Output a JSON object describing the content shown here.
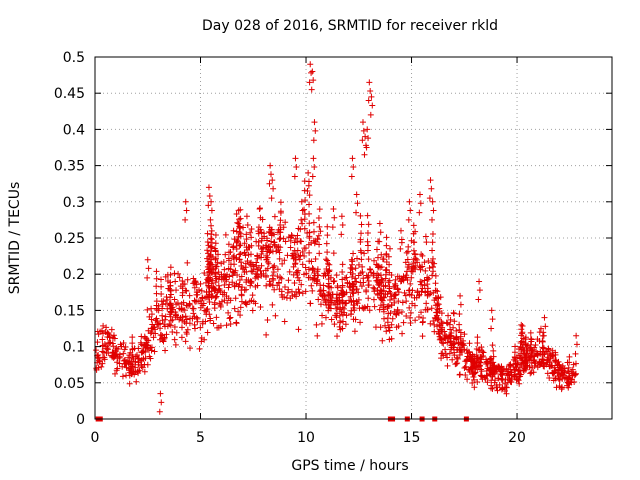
{
  "chart_data": {
    "type": "scatter",
    "title": "Day 028 of 2016, SRMTID for receiver rkld",
    "xlabel": "GPS time / hours",
    "ylabel": "SRMTID / TECUs",
    "xlim": [
      0,
      24.5
    ],
    "ylim": [
      0,
      0.5
    ],
    "xticks": [
      0,
      5,
      10,
      15,
      20
    ],
    "xtick_labels": [
      "0",
      "5",
      "10",
      "15",
      "20"
    ],
    "yticks": [
      0,
      0.05,
      0.1,
      0.15,
      0.2,
      0.25,
      0.3,
      0.35,
      0.4,
      0.45,
      0.5
    ],
    "ytick_labels": [
      "0",
      "0.05",
      "0.1",
      "0.15",
      "0.2",
      "0.25",
      "0.3",
      "0.35",
      "0.4",
      "0.45",
      "0.5"
    ],
    "grid": true,
    "marker": "plus",
    "color": "#e00000",
    "trend": [
      [
        0.0,
        0.09
      ],
      [
        0.5,
        0.1
      ],
      [
        1.0,
        0.095
      ],
      [
        1.5,
        0.075
      ],
      [
        2.0,
        0.07
      ],
      [
        2.5,
        0.12
      ],
      [
        3.0,
        0.13
      ],
      [
        3.5,
        0.15
      ],
      [
        4.0,
        0.16
      ],
      [
        4.5,
        0.155
      ],
      [
        5.0,
        0.16
      ],
      [
        5.5,
        0.175
      ],
      [
        6.0,
        0.18
      ],
      [
        6.5,
        0.19
      ],
      [
        7.0,
        0.205
      ],
      [
        7.5,
        0.21
      ],
      [
        8.0,
        0.215
      ],
      [
        8.5,
        0.22
      ],
      [
        9.0,
        0.225
      ],
      [
        9.5,
        0.21
      ],
      [
        10.0,
        0.22
      ],
      [
        10.5,
        0.2
      ],
      [
        11.0,
        0.17
      ],
      [
        11.5,
        0.16
      ],
      [
        12.0,
        0.165
      ],
      [
        12.5,
        0.18
      ],
      [
        13.0,
        0.19
      ],
      [
        13.5,
        0.175
      ],
      [
        14.0,
        0.155
      ],
      [
        14.5,
        0.17
      ],
      [
        15.0,
        0.2
      ],
      [
        15.5,
        0.19
      ],
      [
        16.0,
        0.17
      ],
      [
        16.5,
        0.105
      ],
      [
        17.0,
        0.11
      ],
      [
        17.5,
        0.085
      ],
      [
        18.0,
        0.07
      ],
      [
        18.5,
        0.075
      ],
      [
        19.0,
        0.06
      ],
      [
        19.5,
        0.055
      ],
      [
        20.0,
        0.075
      ],
      [
        20.5,
        0.085
      ],
      [
        21.0,
        0.09
      ],
      [
        21.5,
        0.085
      ],
      [
        22.0,
        0.065
      ],
      [
        22.5,
        0.055
      ],
      [
        22.8,
        0.06
      ]
    ],
    "spikes": [
      [
        10.2,
        0.49
      ],
      [
        10.3,
        0.48
      ],
      [
        10.4,
        0.41
      ],
      [
        10.35,
        0.36
      ],
      [
        9.5,
        0.36
      ],
      [
        8.3,
        0.35
      ],
      [
        8.4,
        0.33
      ],
      [
        13.0,
        0.465
      ],
      [
        13.1,
        0.445
      ],
      [
        12.7,
        0.41
      ],
      [
        12.8,
        0.39
      ],
      [
        12.9,
        0.4
      ],
      [
        12.2,
        0.36
      ],
      [
        4.3,
        0.3
      ],
      [
        5.4,
        0.32
      ],
      [
        5.5,
        0.3
      ],
      [
        15.9,
        0.33
      ],
      [
        16.0,
        0.3
      ],
      [
        14.9,
        0.3
      ],
      [
        18.2,
        0.19
      ],
      [
        11.3,
        0.29
      ],
      [
        7.8,
        0.29
      ],
      [
        11.7,
        0.28
      ],
      [
        13.5,
        0.27
      ],
      [
        15.4,
        0.31
      ],
      [
        3.1,
        0.035
      ],
      [
        10.1,
        0.34
      ],
      [
        9.8,
        0.3
      ],
      [
        6.8,
        0.27
      ],
      [
        7.2,
        0.28
      ],
      [
        12.4,
        0.31
      ],
      [
        14.5,
        0.26
      ],
      [
        3.8,
        0.19
      ],
      [
        2.5,
        0.22
      ],
      [
        21.3,
        0.14
      ],
      [
        22.8,
        0.115
      ],
      [
        20.2,
        0.13
      ],
      [
        17.3,
        0.17
      ],
      [
        18.8,
        0.15
      ]
    ],
    "zero_markers_x": [
      0.15,
      0.25,
      14.0,
      14.1,
      14.8,
      15.5,
      16.1,
      17.6
    ]
  }
}
